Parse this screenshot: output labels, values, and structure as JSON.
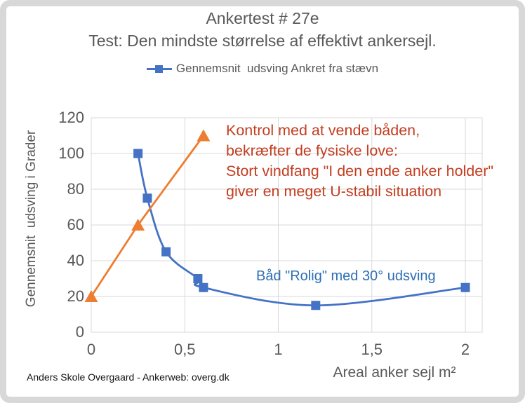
{
  "frame": {
    "border_color": "#d8d8d8",
    "background": "#ffffff"
  },
  "footer": "Anders Skole Overgaard - Ankerweb: overg.dk",
  "colors": {
    "series_blue": "#4472c4",
    "series_orange": "#ed7d31",
    "axis_text": "#595959",
    "gridline": "#d9d9d9",
    "annotation_red": "#c43d21",
    "annotation_blue": "#2e6fb5"
  },
  "chart_data": {
    "type": "line",
    "title": "Ankertest # 27e",
    "subtitle": "Test: Den mindste størrelse af effektivt ankersejl.",
    "xlabel": "Areal anker sejl m²",
    "ylabel": "Gennemsnit  udsving i Grader",
    "xlim": [
      0,
      2.09
    ],
    "ylim": [
      0,
      120
    ],
    "x_ticks": [
      0,
      0.5,
      1,
      1.5,
      2
    ],
    "x_tick_labels": [
      "0",
      "0,5",
      "1",
      "1,5",
      "2"
    ],
    "y_ticks": [
      0,
      20,
      40,
      60,
      80,
      100,
      120
    ],
    "y_tick_labels": [
      "0",
      "20",
      "40",
      "60",
      "80",
      "100",
      "120"
    ],
    "grid": true,
    "legend_position": "top-center",
    "series": [
      {
        "name": "Gennemsnit  udsving Ankret fra stævn",
        "color": "#4472c4",
        "marker": "square",
        "line": "smooth",
        "in_legend": true,
        "points": [
          [
            0.25,
            100
          ],
          [
            0.3,
            75
          ],
          [
            0.4,
            45
          ],
          [
            0.57,
            30
          ],
          [
            0.6,
            25
          ],
          [
            1.2,
            15
          ],
          [
            2,
            25
          ]
        ]
      },
      {
        "name": "",
        "color": "#ed7d31",
        "marker": "triangle",
        "line": "straight",
        "in_legend": false,
        "points": [
          [
            0,
            20
          ],
          [
            0.25,
            60
          ],
          [
            0.6,
            110
          ]
        ]
      }
    ],
    "annotations": [
      {
        "id": "control-note",
        "color": "#c43d21",
        "text": "Kontrol med at vende båden,\nbekræfter de fysiske love:\nStort vindfang \"I den ende anker holder\"\ngiver en meget U-stabil situation"
      },
      {
        "id": "calm-boat-note",
        "color": "#2e6fb5",
        "text": "Båd \"Rolig\" med 30° udsving"
      }
    ]
  }
}
